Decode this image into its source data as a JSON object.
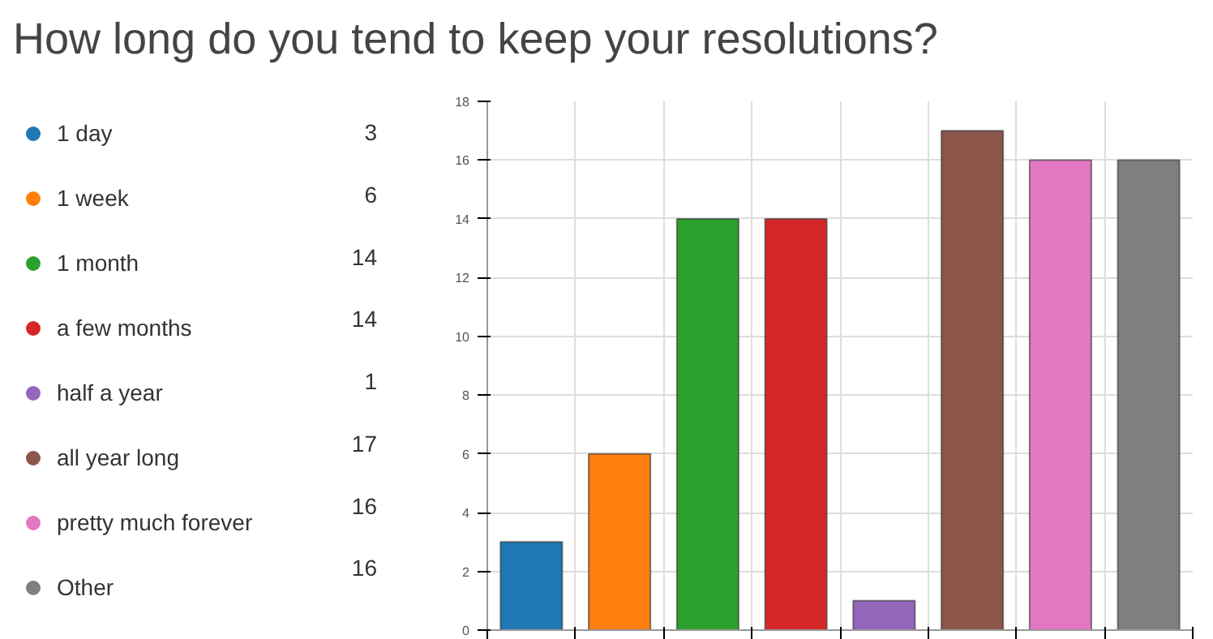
{
  "chart_data": {
    "type": "bar",
    "title": "How long do you tend to keep your resolutions?",
    "categories": [
      null,
      null,
      null,
      null,
      null,
      null,
      null,
      null
    ],
    "series": [
      {
        "name": "1 day",
        "color": "#1f77b4",
        "values": [
          3,
          null,
          null,
          null,
          null,
          null,
          null,
          null
        ]
      },
      {
        "name": "1 week",
        "color": "#ff7f0e",
        "values": [
          null,
          6,
          null,
          null,
          null,
          null,
          null,
          null
        ]
      },
      {
        "name": "1 month",
        "color": "#2ca02c",
        "values": [
          null,
          null,
          14,
          null,
          null,
          null,
          null,
          null
        ]
      },
      {
        "name": "a few months",
        "color": "#d62728",
        "values": [
          null,
          null,
          null,
          14,
          null,
          null,
          null,
          null
        ]
      },
      {
        "name": "half a year",
        "color": "#9467bd",
        "values": [
          null,
          null,
          null,
          null,
          1,
          null,
          null,
          null
        ]
      },
      {
        "name": "all year long",
        "color": "#8c564b",
        "values": [
          null,
          null,
          null,
          null,
          null,
          17,
          null,
          null
        ]
      },
      {
        "name": "pretty much forever",
        "color": "#e377c2",
        "values": [
          null,
          null,
          null,
          null,
          null,
          null,
          16,
          null
        ]
      },
      {
        "name": "Other",
        "color": "#7f7f7f",
        "values": [
          null,
          null,
          null,
          null,
          null,
          null,
          null,
          16
        ]
      }
    ],
    "ylim": [
      0,
      18
    ],
    "yticks": [
      0,
      2,
      4,
      6,
      8,
      10,
      12,
      14,
      16,
      18
    ],
    "grid": true,
    "legend": "left",
    "annotations": [
      "3",
      "6",
      "14",
      "14",
      "1",
      "17",
      "16",
      "16"
    ]
  }
}
